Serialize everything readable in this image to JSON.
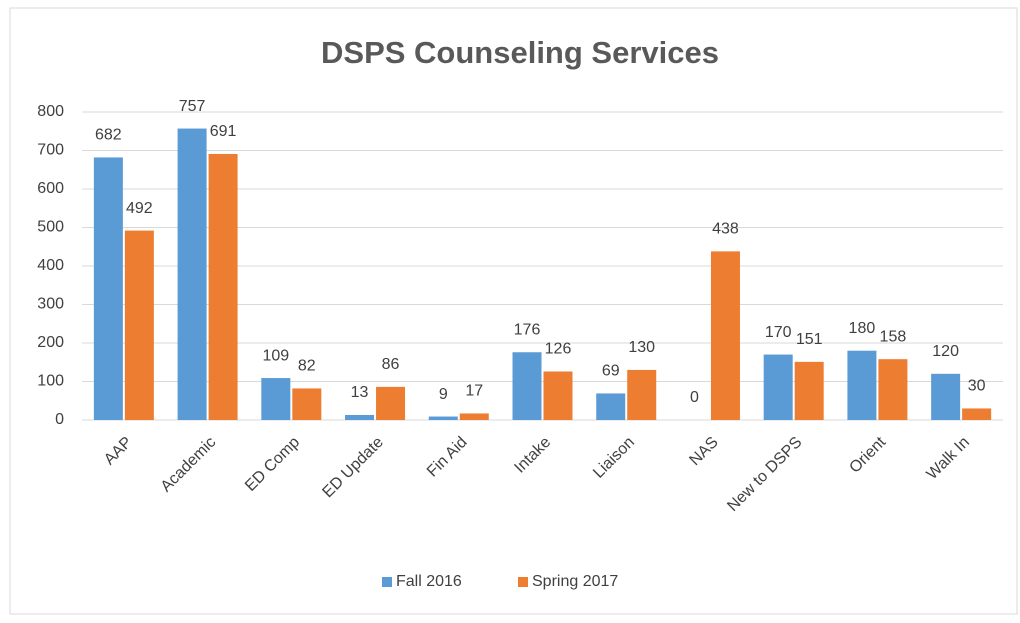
{
  "chart_data": {
    "type": "bar",
    "title": "DSPS Counseling Services",
    "categories": [
      "AAP",
      "Academic",
      "ED Comp",
      "ED Update",
      "Fin Aid",
      "Intake",
      "Liaison",
      "NAS",
      "New to DSPS",
      "Orient",
      "Walk In"
    ],
    "series": [
      {
        "name": "Fall 2016",
        "color": "#5b9bd5",
        "values": [
          682,
          757,
          109,
          13,
          9,
          176,
          69,
          0,
          170,
          180,
          120
        ]
      },
      {
        "name": "Spring 2017",
        "color": "#ed7d31",
        "values": [
          492,
          691,
          82,
          86,
          17,
          126,
          130,
          438,
          151,
          158,
          30
        ]
      }
    ],
    "ylim": [
      0,
      800
    ],
    "yticks": [
      0,
      100,
      200,
      300,
      400,
      500,
      600,
      700,
      800
    ],
    "grid": true,
    "legend": "bottom"
  }
}
